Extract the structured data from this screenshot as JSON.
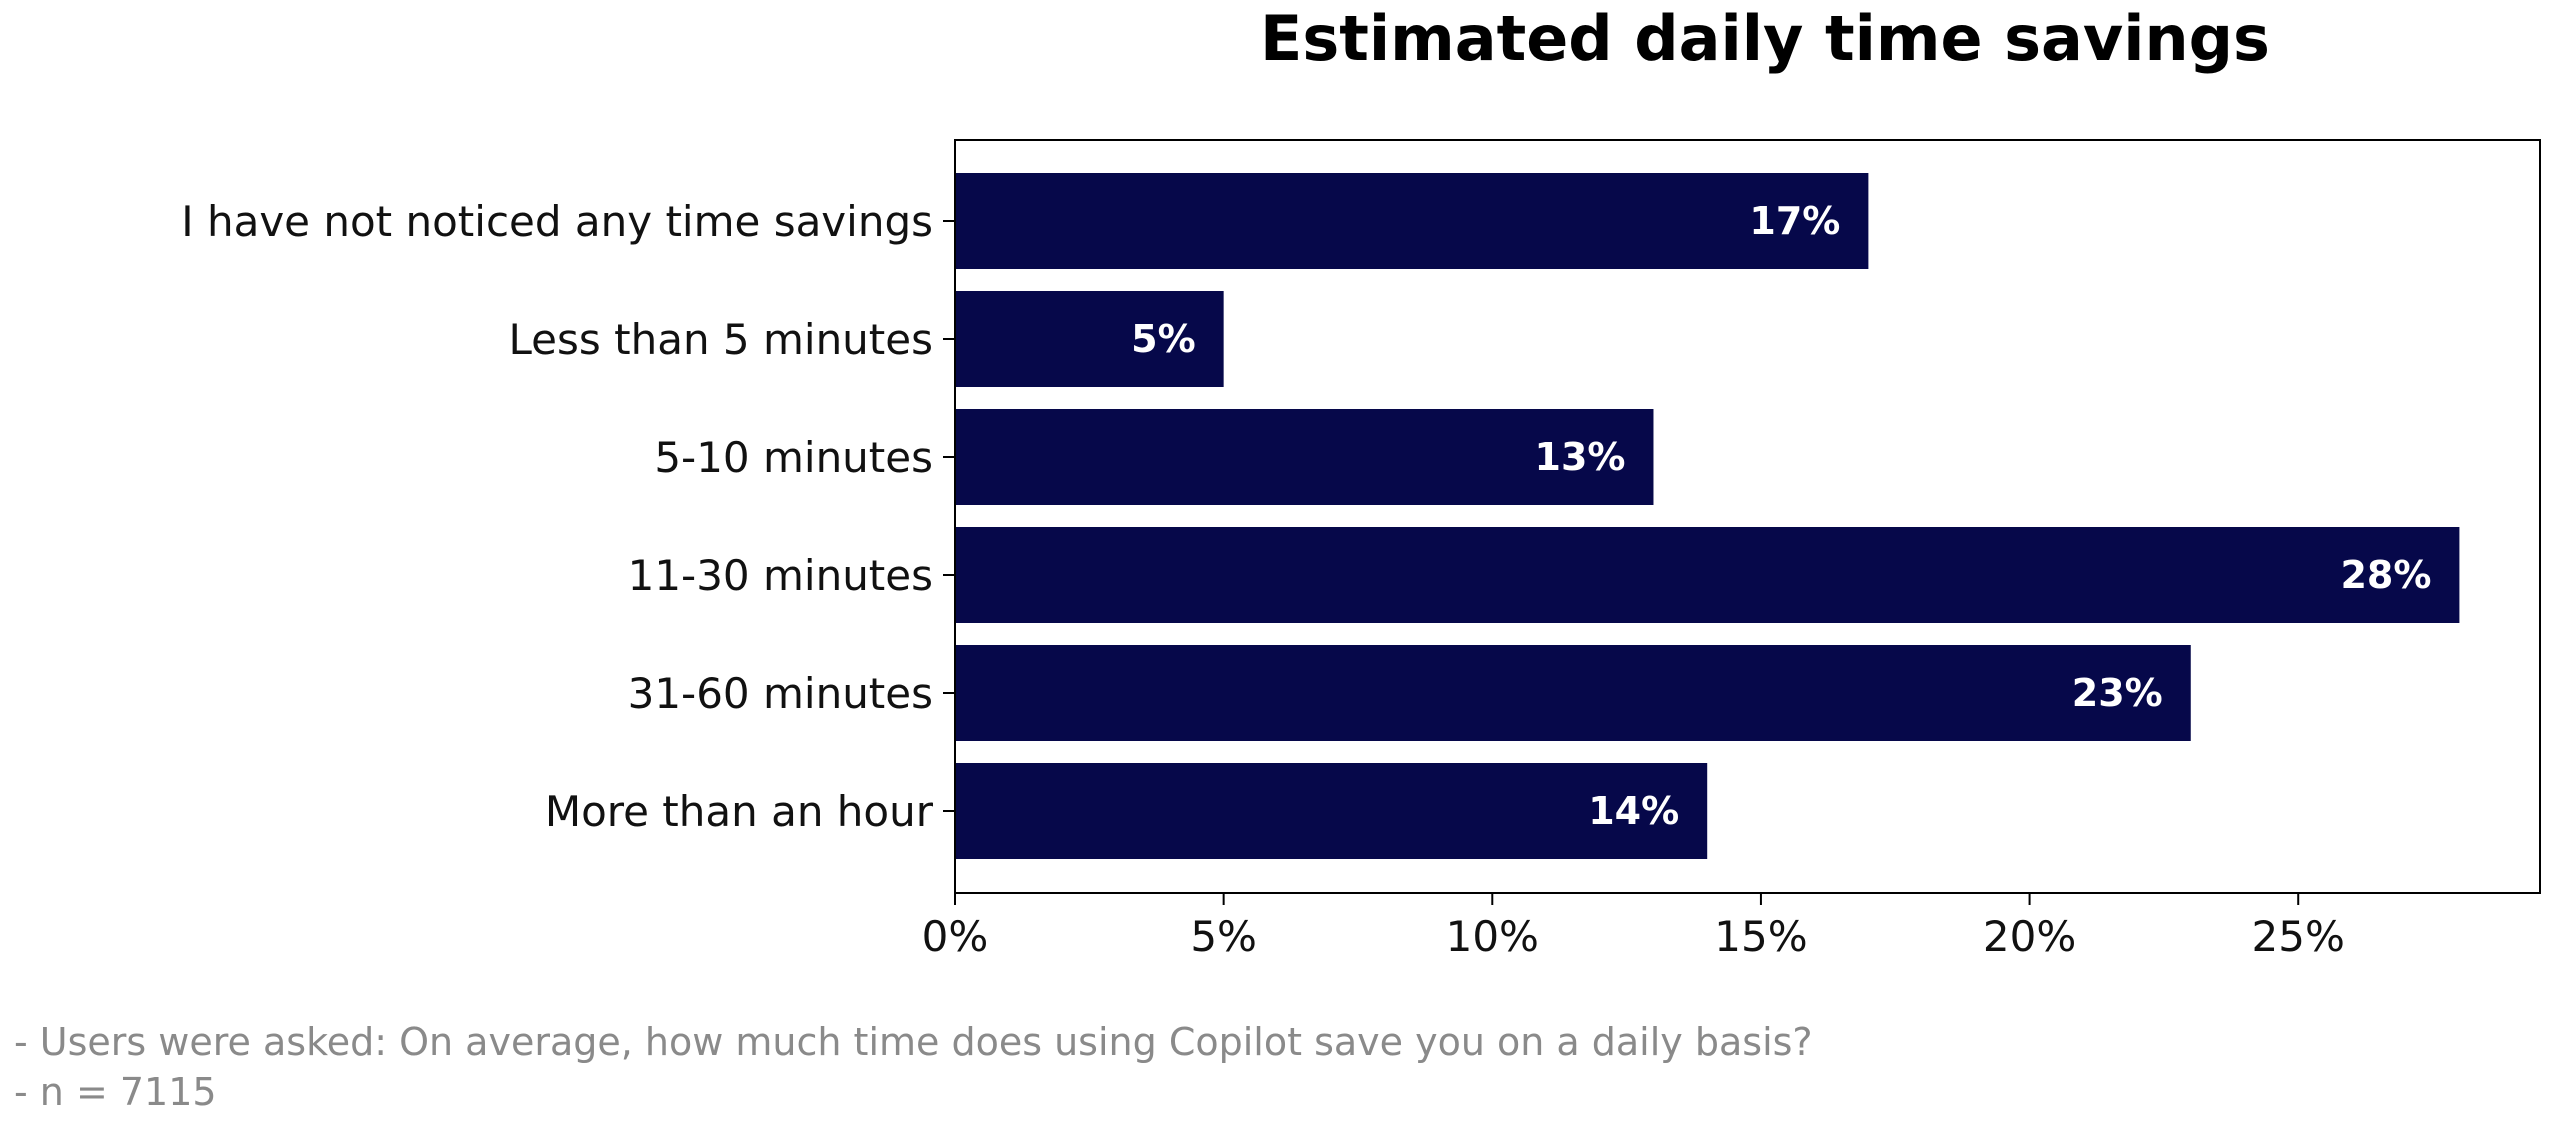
{
  "chart_data": {
    "type": "bar",
    "orientation": "horizontal",
    "title": "Estimated daily time savings",
    "categories": [
      "I have not noticed any time savings",
      "Less than 5 minutes",
      "5-10 minutes",
      "11-30 minutes",
      "31-60 minutes",
      "More than an hour"
    ],
    "values": [
      17,
      5,
      13,
      28,
      23,
      14
    ],
    "data_labels": [
      "17%",
      "5%",
      "13%",
      "28%",
      "23%",
      "14%"
    ],
    "xlim": [
      0,
      29.5
    ],
    "x_ticks": [
      0,
      5,
      10,
      15,
      20,
      25
    ],
    "x_tick_labels": [
      "0%",
      "5%",
      "10%",
      "15%",
      "20%",
      "25%"
    ],
    "xlabel": "",
    "ylabel": "",
    "bar_color": "#06084a",
    "grid": false,
    "legend": "none"
  },
  "notes": [
    "- Users were asked: On average, how much time does using Copilot save you on a daily basis?",
    "- n = 7115"
  ]
}
